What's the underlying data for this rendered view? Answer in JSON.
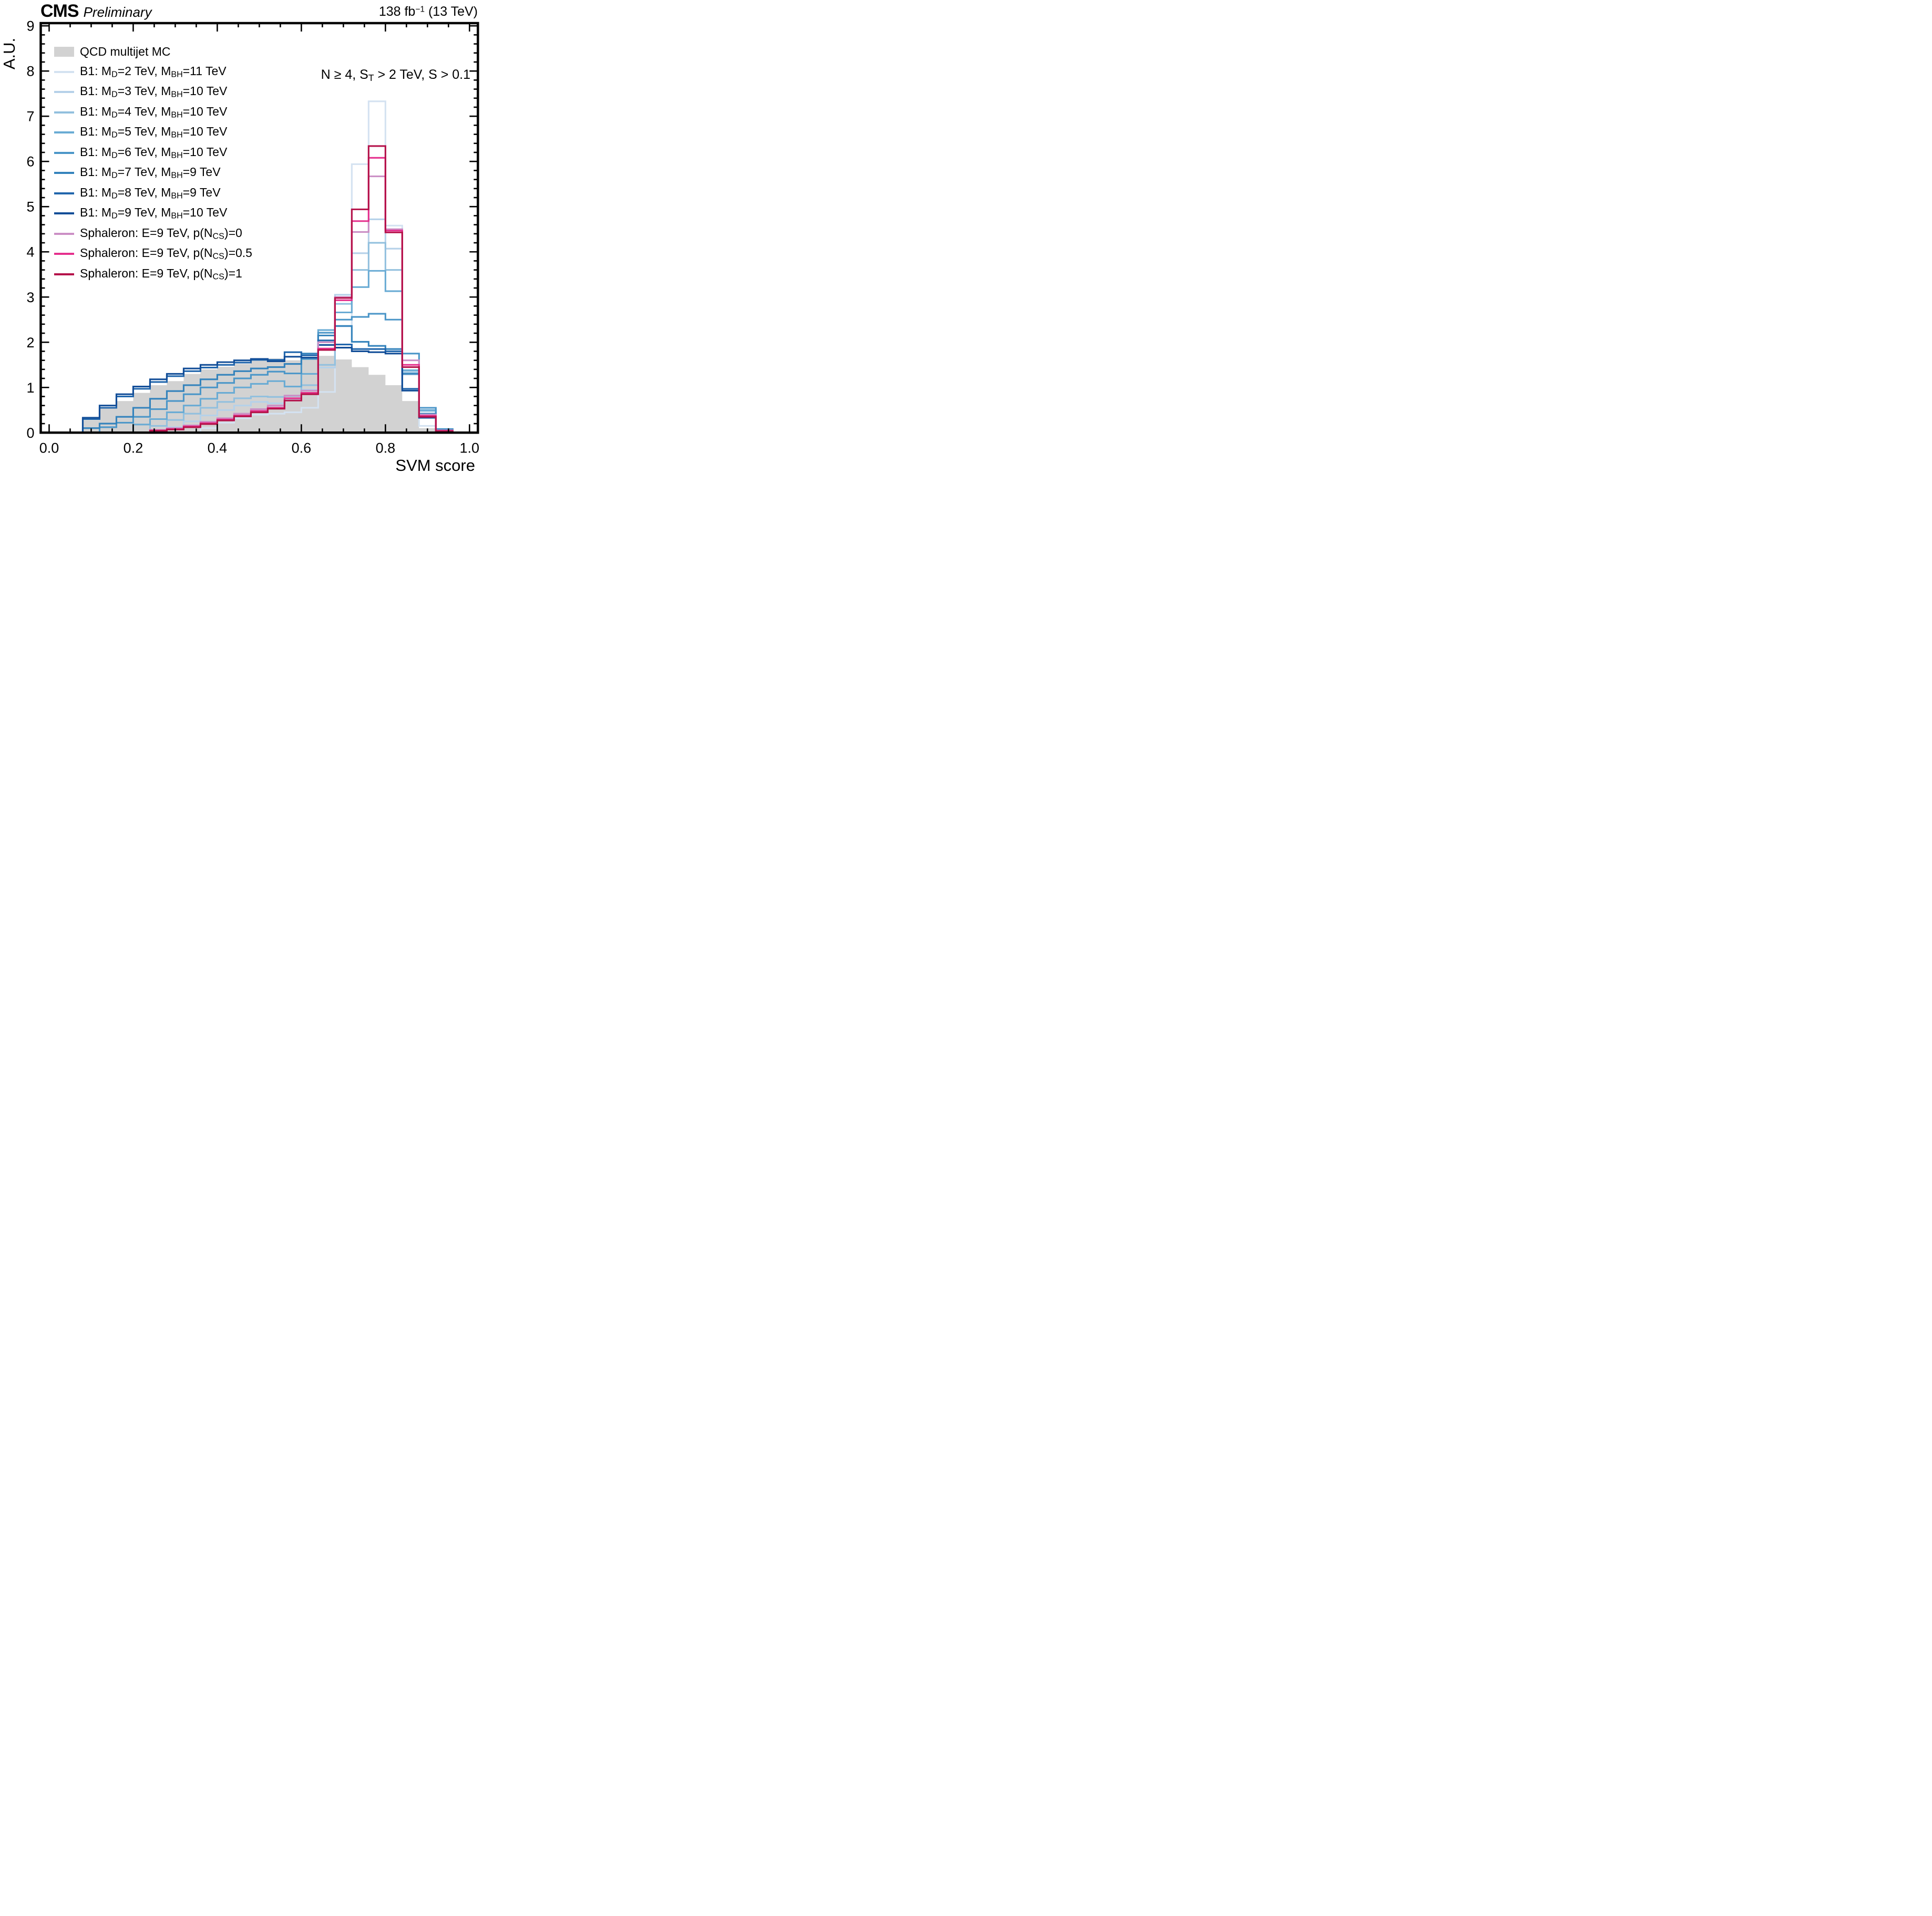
{
  "header": {
    "experiment": "CMS",
    "status": "Preliminary",
    "lumi_parts": [
      [
        "t",
        "138 fb"
      ],
      [
        "u",
        "−1"
      ],
      [
        "t",
        " (13 TeV)"
      ]
    ]
  },
  "annotation_parts": [
    [
      "t",
      "N ≥ 4, S"
    ],
    [
      "s",
      "T"
    ],
    [
      "t",
      " > 2 TeV, S > 0.1"
    ]
  ],
  "axes": {
    "x_label": "SVM score",
    "y_label": "A.U."
  },
  "colors": {
    "frame": "#000000",
    "background": "#ffffff",
    "qcd_fill": "#d2d2d2"
  },
  "chart_data": {
    "type": "histogram-overlay",
    "x_range": [
      -0.02,
      1.02
    ],
    "y_range": [
      0,
      9.06
    ],
    "x_ticks": [
      0.0,
      0.2,
      0.4,
      0.6,
      0.8,
      1.0
    ],
    "x_tick_labels": [
      "0.0",
      "0.2",
      "0.4",
      "0.6",
      "0.8",
      "1.0"
    ],
    "x_minor_step": 0.05,
    "y_ticks": [
      0,
      1,
      2,
      3,
      4,
      5,
      6,
      7,
      8,
      9
    ],
    "y_tick_labels": [
      "0",
      "1",
      "2",
      "3",
      "4",
      "5",
      "6",
      "7",
      "8",
      "9"
    ],
    "y_minor_step": 0.2,
    "grid": false,
    "legend_position": "top-left-inside",
    "bin_edges": [
      0.0,
      0.04,
      0.08,
      0.12,
      0.16,
      0.2,
      0.24,
      0.28,
      0.32,
      0.36,
      0.4,
      0.44,
      0.48,
      0.52,
      0.56,
      0.6,
      0.64,
      0.68,
      0.72,
      0.76,
      0.8,
      0.84,
      0.88,
      0.92,
      0.96,
      1.0
    ],
    "series": [
      {
        "id": "qcd",
        "style": "fill",
        "color": "#d2d2d2",
        "label_parts": [
          [
            "t",
            "QCD multijet MC"
          ]
        ],
        "values": [
          0,
          0.01,
          0.28,
          0.55,
          0.7,
          0.88,
          1.05,
          1.14,
          1.3,
          1.4,
          1.46,
          1.52,
          1.59,
          1.64,
          1.6,
          1.64,
          1.7,
          1.62,
          1.45,
          1.28,
          1.05,
          0.7,
          0.1,
          0.02,
          0
        ]
      },
      {
        "id": "b1-md2",
        "style": "line",
        "color": "#d4e2f1",
        "label_parts": [
          [
            "t",
            "B1: M"
          ],
          [
            "s",
            "D"
          ],
          [
            "t",
            "=2 TeV, M"
          ],
          [
            "s",
            "BH"
          ],
          [
            "t",
            "=11 TeV"
          ]
        ],
        "values": [
          0,
          0,
          0,
          0,
          0,
          0,
          0,
          0,
          0,
          0.1,
          0.22,
          0.32,
          0.4,
          0.42,
          0.45,
          0.55,
          0.9,
          2.35,
          5.94,
          7.33,
          4.58,
          1.28,
          0.15,
          0.04,
          0
        ]
      },
      {
        "id": "b1-md3",
        "style": "line",
        "color": "#b5d1e9",
        "label_parts": [
          [
            "t",
            "B1: M"
          ],
          [
            "s",
            "D"
          ],
          [
            "t",
            "=3 TeV, M"
          ],
          [
            "s",
            "BH"
          ],
          [
            "t",
            "=10 TeV"
          ]
        ],
        "values": [
          0,
          0,
          0,
          0,
          0,
          0,
          0,
          0.12,
          0.25,
          0.38,
          0.5,
          0.6,
          0.68,
          0.65,
          0.72,
          0.95,
          1.44,
          3.05,
          3.97,
          4.72,
          4.07,
          1.35,
          0.5,
          0.06,
          0
        ]
      },
      {
        "id": "b1-md4",
        "style": "line",
        "color": "#92c0de",
        "label_parts": [
          [
            "t",
            "B1: M"
          ],
          [
            "s",
            "D"
          ],
          [
            "t",
            "=4 TeV, M"
          ],
          [
            "s",
            "BH"
          ],
          [
            "t",
            "=10 TeV"
          ]
        ],
        "values": [
          0,
          0,
          0,
          0,
          0,
          0,
          0.15,
          0.28,
          0.42,
          0.55,
          0.68,
          0.76,
          0.8,
          0.79,
          0.81,
          1.05,
          1.5,
          2.85,
          3.6,
          4.2,
          3.6,
          1.32,
          0.48,
          0.06,
          0
        ]
      },
      {
        "id": "b1-md5",
        "style": "line",
        "color": "#69abd4",
        "label_parts": [
          [
            "t",
            "B1: M"
          ],
          [
            "s",
            "D"
          ],
          [
            "t",
            "=5 TeV, M"
          ],
          [
            "s",
            "BH"
          ],
          [
            "t",
            "=10 TeV"
          ]
        ],
        "values": [
          0,
          0,
          0,
          0,
          0,
          0.18,
          0.3,
          0.45,
          0.6,
          0.75,
          0.88,
          1.0,
          1.08,
          1.14,
          1.02,
          1.3,
          2.27,
          2.66,
          3.22,
          3.58,
          3.13,
          1.38,
          0.5,
          0.07,
          0
        ]
      },
      {
        "id": "b1-md6",
        "style": "line",
        "color": "#4b96c8",
        "label_parts": [
          [
            "t",
            "B1: M"
          ],
          [
            "s",
            "D"
          ],
          [
            "t",
            "=6 TeV, M"
          ],
          [
            "s",
            "BH"
          ],
          [
            "t",
            "=10 TeV"
          ]
        ],
        "values": [
          0,
          0,
          0,
          0.12,
          0.22,
          0.35,
          0.52,
          0.7,
          0.85,
          1.0,
          1.1,
          1.2,
          1.28,
          1.35,
          1.31,
          1.63,
          2.21,
          2.5,
          2.56,
          2.63,
          2.5,
          1.75,
          0.55,
          0.08,
          0
        ]
      },
      {
        "id": "b1-md7",
        "style": "line",
        "color": "#3483bc",
        "label_parts": [
          [
            "t",
            "B1: M"
          ],
          [
            "s",
            "D"
          ],
          [
            "t",
            "=7 TeV, M"
          ],
          [
            "s",
            "BH"
          ],
          [
            "t",
            "=9 TeV"
          ]
        ],
        "values": [
          0,
          0,
          0.1,
          0.2,
          0.35,
          0.55,
          0.75,
          0.92,
          1.05,
          1.18,
          1.28,
          1.36,
          1.42,
          1.45,
          1.52,
          1.75,
          2.15,
          2.36,
          2.01,
          1.92,
          1.85,
          1.3,
          0.42,
          0.06,
          0
        ]
      },
      {
        "id": "b1-md8",
        "style": "line",
        "color": "#2166ac",
        "label_parts": [
          [
            "t",
            "B1: M"
          ],
          [
            "s",
            "D"
          ],
          [
            "t",
            "=8 TeV, M"
          ],
          [
            "s",
            "BH"
          ],
          [
            "t",
            "=9 TeV"
          ]
        ],
        "values": [
          0,
          0,
          0.3,
          0.55,
          0.8,
          0.97,
          1.12,
          1.25,
          1.36,
          1.44,
          1.5,
          1.55,
          1.61,
          1.61,
          1.78,
          1.71,
          2.04,
          1.95,
          1.85,
          1.85,
          1.8,
          0.97,
          0.35,
          0.05,
          0
        ]
      },
      {
        "id": "b1-md9",
        "style": "line",
        "color": "#134e98",
        "label_parts": [
          [
            "t",
            "B1: M"
          ],
          [
            "s",
            "D"
          ],
          [
            "t",
            "=9 TeV, M"
          ],
          [
            "s",
            "BH"
          ],
          [
            "t",
            "=10 TeV"
          ]
        ],
        "values": [
          0,
          0,
          0.33,
          0.6,
          0.85,
          1.02,
          1.18,
          1.3,
          1.42,
          1.5,
          1.56,
          1.6,
          1.63,
          1.58,
          1.68,
          1.66,
          1.94,
          1.88,
          1.8,
          1.78,
          1.75,
          0.93,
          0.33,
          0.05,
          0
        ]
      },
      {
        "id": "sphaleron-p0",
        "style": "line",
        "color": "#cb8fc5",
        "label_parts": [
          [
            "t",
            "Sphaleron: E=9 TeV, p(N"
          ],
          [
            "s",
            "CS"
          ],
          [
            "t",
            ")=0"
          ]
        ],
        "values": [
          0,
          0,
          0,
          0,
          0,
          0,
          0.06,
          0.1,
          0.16,
          0.24,
          0.32,
          0.42,
          0.52,
          0.6,
          0.82,
          0.93,
          2.0,
          3.0,
          4.44,
          5.67,
          4.5,
          1.6,
          0.4,
          0.05,
          0
        ]
      },
      {
        "id": "sphaleron-p05",
        "style": "line",
        "color": "#e5308d",
        "label_parts": [
          [
            "t",
            "Sphaleron: E=9 TeV, p(N"
          ],
          [
            "s",
            "CS"
          ],
          [
            "t",
            ")=0.5"
          ]
        ],
        "values": [
          0,
          0,
          0,
          0,
          0,
          0,
          0.05,
          0.08,
          0.14,
          0.21,
          0.29,
          0.38,
          0.48,
          0.55,
          0.76,
          0.88,
          1.86,
          2.93,
          4.68,
          6.08,
          4.47,
          1.5,
          0.37,
          0.04,
          0
        ]
      },
      {
        "id": "sphaleron-p1",
        "style": "line",
        "color": "#b5124a",
        "label_parts": [
          [
            "t",
            "Sphaleron: E=9 TeV, p(N"
          ],
          [
            "s",
            "CS"
          ],
          [
            "t",
            ")=1"
          ]
        ],
        "values": [
          0,
          0,
          0,
          0,
          0,
          0,
          0.04,
          0.07,
          0.12,
          0.19,
          0.27,
          0.36,
          0.45,
          0.53,
          0.71,
          0.85,
          1.83,
          2.98,
          4.94,
          6.34,
          4.43,
          1.45,
          0.35,
          0.03,
          0
        ]
      }
    ]
  },
  "legend_layout": {
    "start_y": 98,
    "step_y": 38.5
  }
}
